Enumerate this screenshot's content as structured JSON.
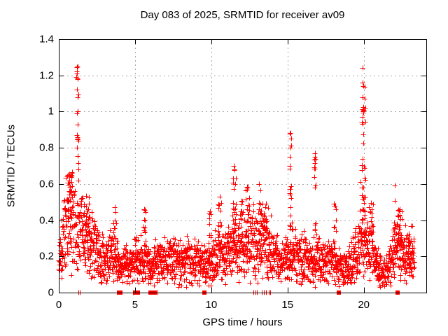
{
  "title": "Day 083 of 2025, SRMTID for receiver av09",
  "axes": {
    "x": {
      "label": "GPS time / hours",
      "ticks": [
        "0",
        "5",
        "10",
        "15",
        "20"
      ],
      "tick_values": [
        0,
        5,
        10,
        15,
        20
      ],
      "range": [
        0,
        24.1
      ]
    },
    "y": {
      "label": "SRMTID / TECUs",
      "ticks": [
        "0",
        "0.2",
        "0.4",
        "0.6",
        "0.8",
        "1",
        "1.2",
        "1.4"
      ],
      "tick_values": [
        0,
        0.2,
        0.4,
        0.6,
        0.8,
        1,
        1.2,
        1.4
      ],
      "range": [
        0,
        1.4
      ]
    }
  },
  "colors": {
    "marker": "#ff0000",
    "grid": "#a8a8a8",
    "border": "#000000",
    "text": "#000000",
    "background": "#ffffff"
  },
  "chart_data": {
    "type": "scatter",
    "title": "Day 083 of 2025, SRMTID for receiver av09",
    "xlabel": "GPS time / hours",
    "ylabel": "SRMTID / TECUs",
    "xlim": [
      0,
      24.1
    ],
    "ylim": [
      0,
      1.4
    ],
    "x_ticks": [
      0,
      5,
      10,
      15,
      20
    ],
    "y_ticks": [
      0,
      0.2,
      0.4,
      0.6,
      0.8,
      1,
      1.2,
      1.4
    ],
    "grid": true,
    "legend": false,
    "marker": "plus",
    "marker_color": "#ff0000",
    "marker_size_px": 7,
    "description": "Dense scatter (~2600 red plus markers) of SRMTID values across the GPS day; baseline mostly 0.1-0.3 TECU with transient spikes near hours 1.2 (to 1.25), 11.5 (0.70), 15.2 (0.88), 16.8 (0.77), 19.9-20.0 (1.24) and 22.0 (0.59); red squares/bars on the zero line mark zero-value epochs.",
    "sampling_step_hours": 0.01,
    "data_end_hour": 23.33,
    "seed": 2025083,
    "baseline_envelope": {
      "hours": [
        0,
        0.3,
        0.6,
        1.0,
        1.4,
        1.8,
        2.2,
        2.6,
        3.0,
        3.5,
        4.0,
        4.5,
        5.0,
        5.5,
        6.0,
        6.5,
        7.0,
        7.5,
        8.0,
        8.5,
        9.0,
        9.5,
        10.0,
        10.5,
        11.0,
        11.5,
        12.0,
        12.5,
        13.0,
        13.5,
        14.0,
        14.5,
        15.0,
        15.5,
        16.0,
        16.5,
        17.0,
        17.5,
        18.0,
        18.5,
        19.0,
        19.5,
        19.9,
        20.3,
        20.8,
        21.2,
        21.6,
        22.0,
        22.3,
        22.7,
        23.0,
        23.35
      ],
      "values": [
        0.17,
        0.3,
        0.4,
        0.38,
        0.34,
        0.32,
        0.27,
        0.22,
        0.19,
        0.21,
        0.16,
        0.15,
        0.17,
        0.19,
        0.16,
        0.18,
        0.17,
        0.19,
        0.17,
        0.18,
        0.17,
        0.15,
        0.18,
        0.21,
        0.22,
        0.27,
        0.26,
        0.29,
        0.27,
        0.29,
        0.24,
        0.17,
        0.21,
        0.22,
        0.19,
        0.18,
        0.18,
        0.16,
        0.17,
        0.12,
        0.15,
        0.21,
        0.3,
        0.27,
        0.17,
        0.11,
        0.12,
        0.24,
        0.29,
        0.21,
        0.18,
        0.19
      ]
    },
    "spike_fields": [
      "hour",
      "width",
      "vmin",
      "vmax",
      "count"
    ],
    "spikes": [
      [
        0.65,
        0.45,
        0.45,
        0.66,
        28
      ],
      [
        1.22,
        0.12,
        0.6,
        1.25,
        13
      ],
      [
        1.8,
        0.5,
        0.3,
        0.56,
        18
      ],
      [
        3.65,
        0.2,
        0.28,
        0.47,
        8
      ],
      [
        5.6,
        0.15,
        0.3,
        0.46,
        9
      ],
      [
        9.9,
        0.15,
        0.28,
        0.45,
        7
      ],
      [
        10.55,
        0.2,
        0.28,
        0.52,
        9
      ],
      [
        11.5,
        0.2,
        0.33,
        0.7,
        20
      ],
      [
        12.0,
        0.15,
        0.3,
        0.55,
        9
      ],
      [
        12.35,
        0.2,
        0.3,
        0.62,
        13
      ],
      [
        13.2,
        0.2,
        0.3,
        0.62,
        13
      ],
      [
        13.55,
        0.15,
        0.28,
        0.5,
        8
      ],
      [
        15.2,
        0.15,
        0.32,
        0.88,
        17
      ],
      [
        16.8,
        0.12,
        0.32,
        0.77,
        12
      ],
      [
        18.1,
        0.15,
        0.28,
        0.53,
        8
      ],
      [
        19.95,
        0.3,
        0.3,
        1.16,
        38
      ],
      [
        20.45,
        0.35,
        0.28,
        0.5,
        14
      ],
      [
        22.0,
        0.1,
        0.3,
        0.55,
        7
      ],
      [
        22.35,
        0.35,
        0.25,
        0.46,
        22
      ],
      [
        23.05,
        0.3,
        0.18,
        0.37,
        14
      ]
    ],
    "notable_points": [
      [
        1.22,
        1.25
      ],
      [
        1.2,
        1.21
      ],
      [
        1.24,
        1.18
      ],
      [
        1.21,
        1.12
      ],
      [
        1.23,
        1.0
      ],
      [
        1.19,
        0.99
      ],
      [
        1.22,
        0.93
      ],
      [
        1.2,
        0.87
      ],
      [
        1.24,
        0.85
      ],
      [
        1.18,
        0.8
      ],
      [
        19.93,
        1.24
      ],
      [
        19.9,
        1.16
      ],
      [
        19.96,
        1.14
      ],
      [
        19.92,
        1.08
      ],
      [
        19.95,
        1.0
      ],
      [
        19.9,
        0.97
      ],
      [
        15.18,
        0.88
      ],
      [
        15.22,
        0.85
      ],
      [
        15.2,
        0.8
      ],
      [
        16.8,
        0.77
      ],
      [
        16.78,
        0.75
      ],
      [
        16.83,
        0.74
      ],
      [
        11.48,
        0.7
      ],
      [
        11.52,
        0.68
      ],
      [
        22.03,
        0.59
      ],
      [
        10.55,
        0.53
      ],
      [
        3.65,
        0.47
      ],
      [
        5.6,
        0.46
      ],
      [
        9.9,
        0.45
      ]
    ],
    "zero_markers": {
      "squares": [
        3.95,
        4.05,
        5.02,
        5.18,
        6.0,
        6.3,
        9.55,
        18.35,
        22.2
      ],
      "bars": [
        1.3,
        1.37,
        4.88,
        6.45,
        12.78,
        12.88,
        12.98,
        13.3,
        13.45,
        13.57,
        13.78,
        13.88
      ]
    }
  }
}
